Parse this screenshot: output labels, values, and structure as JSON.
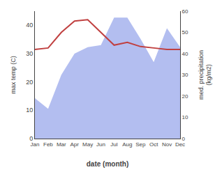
{
  "chart_data": {
    "type": "line",
    "xlabel": "date (month)",
    "ylabel": "max temp (C)",
    "y2label": "med. precipitation\n(kg/m2)",
    "categories": [
      "Jan",
      "Feb",
      "Mar",
      "Apr",
      "May",
      "Jun",
      "Jul",
      "Aug",
      "Sep",
      "Oct",
      "Nov",
      "Dec"
    ],
    "series": [
      {
        "type": "area",
        "axis": "y2",
        "color": "#b3bef0",
        "values": [
          19,
          14,
          30,
          40,
          43,
          44,
          57,
          57,
          47,
          36,
          52,
          43
        ]
      },
      {
        "type": "line",
        "color": "#c04040",
        "values": [
          31.5,
          32.0,
          37.5,
          41.5,
          42.0,
          37.5,
          33.0,
          34.0,
          32.5,
          32.0,
          31.5,
          31.5
        ]
      }
    ],
    "ylim": [
      0,
      45
    ],
    "yticks": [
      0,
      10,
      20,
      30,
      40
    ],
    "y2lim": [
      0,
      60
    ],
    "y2ticks": [
      0,
      10,
      20,
      30,
      40,
      50,
      60
    ],
    "grid": false
  }
}
